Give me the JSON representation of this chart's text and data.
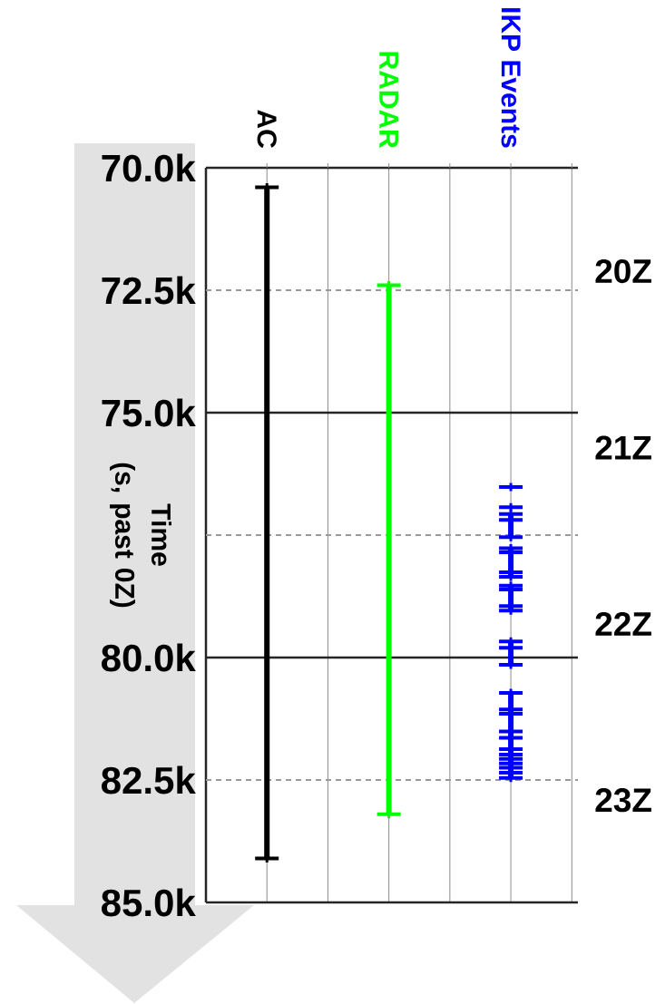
{
  "chart_data": {
    "type": "line",
    "categories": [
      "AC",
      "RADAR",
      "IKP Events"
    ],
    "ylabel": "Time (s, past 0Z)",
    "ylim": [
      85000,
      70000
    ],
    "yticks": [
      {
        "value": 70000,
        "label": "70.0k"
      },
      {
        "value": 72500,
        "label": "72.5k"
      },
      {
        "value": 75000,
        "label": "75.0k"
      },
      {
        "value": 77500,
        "label": null
      },
      {
        "value": 80000,
        "label": "80.0k"
      },
      {
        "value": 82500,
        "label": "82.5k"
      },
      {
        "value": 85000,
        "label": "85.0k"
      }
    ],
    "y2lim": [
      23.611,
      19.444
    ],
    "y2ticks": [
      {
        "value": 20,
        "label": "20Z"
      },
      {
        "value": 21,
        "label": "21Z"
      },
      {
        "value": 22,
        "label": "22Z"
      },
      {
        "value": 23,
        "label": "23Z"
      }
    ],
    "grid": true,
    "marker": "cross",
    "series": [
      {
        "color": "#000000",
        "x": [
          "AC",
          "AC"
        ],
        "values": [
          70400,
          84100
        ]
      },
      {
        "color": "#00ff00",
        "x": [
          "RADAR",
          "RADAR"
        ],
        "values": [
          72400,
          83200
        ]
      },
      {
        "color": "#0000ff",
        "x": [
          "IKP Events"
        ],
        "values": [
          76520
        ]
      },
      {
        "color": "#0000ff",
        "x": [
          "IKP Events"
        ],
        "values": [
          76930
        ]
      },
      {
        "color": "#0000ff",
        "x": [
          "IKP Events",
          "IKP Events",
          "IKP Events"
        ],
        "values": [
          77070,
          77190,
          77540
        ]
      },
      {
        "color": "#0000ff",
        "x": [
          "IKP Events",
          "IKP Events",
          "IKP Events",
          "IKP Events"
        ],
        "values": [
          77770,
          77850,
          78260,
          78350
        ]
      },
      {
        "color": "#0000ff",
        "x": [
          "IKP Events",
          "IKP Events",
          "IKP Events",
          "IKP Events"
        ],
        "values": [
          78530,
          78610,
          78950,
          79040
        ]
      },
      {
        "color": "#0000ff",
        "x": [
          "IKP Events",
          "IKP Events",
          "IKP Events"
        ],
        "values": [
          79670,
          79800,
          80150
        ]
      },
      {
        "color": "#0000ff",
        "x": [
          "IKP Events",
          "IKP Events",
          "IKP Events",
          "IKP Events",
          "IKP Events",
          "IKP Events",
          "IKP Events",
          "IKP Events",
          "IKP Events",
          "IKP Events",
          "IKP Events",
          "IKP Events"
        ],
        "values": [
          80720,
          81060,
          81150,
          81510,
          81640,
          81870,
          81980,
          82070,
          82160,
          82250,
          82350,
          82460
        ]
      }
    ]
  }
}
